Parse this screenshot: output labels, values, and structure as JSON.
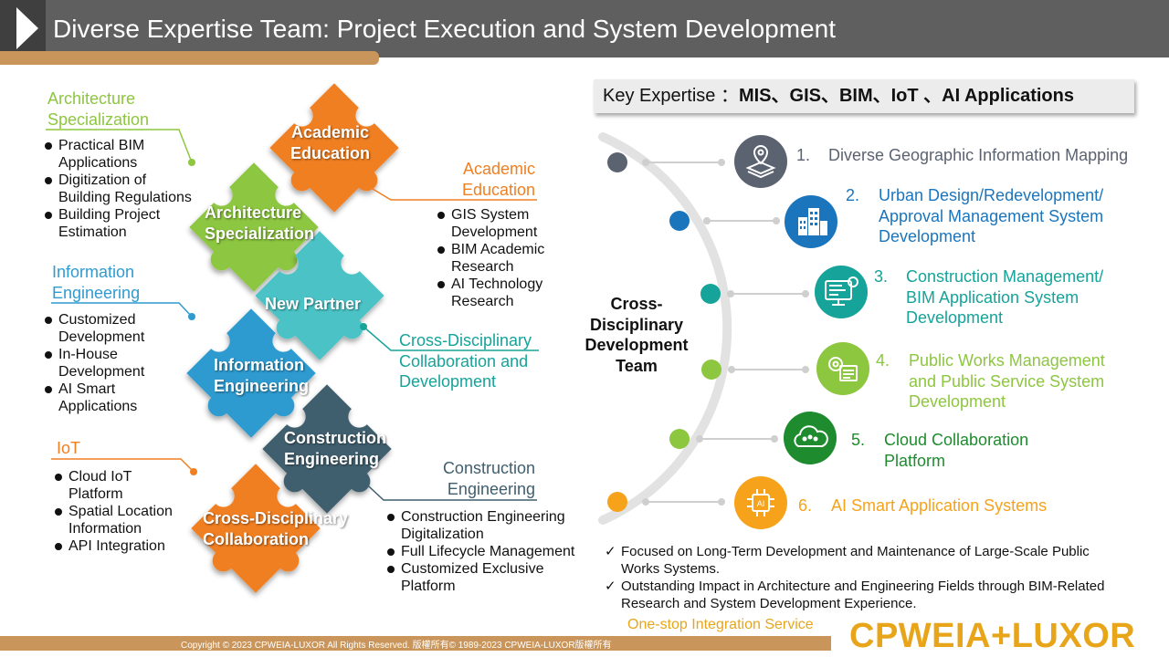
{
  "header": {
    "title": "Diverse Expertise Team: Project Execution and System Development"
  },
  "puzzle": {
    "academic": "Academic\nEducation",
    "architecture": "Architecture\nSpecialization",
    "new_partner": "New Partner",
    "information": "Information\nEngineering",
    "construction": "Construction\nEngineering",
    "cross": "Cross-Disciplinary\nCollaboration"
  },
  "left_groups": [
    {
      "title": "Architecture\nSpecialization",
      "items": [
        "Practical BIM\nApplications",
        "Digitization of\nBuilding Regulations",
        "Building Project\nEstimation"
      ]
    },
    {
      "title": "Information\nEngineering",
      "items": [
        "Customized\nDevelopment",
        "In-House\nDevelopment",
        "AI Smart\nApplications"
      ]
    },
    {
      "title": "IoT",
      "items": [
        "Cloud IoT\nPlatform",
        "Spatial Location\nInformation",
        "API Integration"
      ]
    }
  ],
  "right_groups": [
    {
      "title": "Academic\nEducation",
      "items": [
        "GIS System\nDevelopment",
        "BIM Academic\nResearch",
        "AI Technology\nResearch"
      ]
    },
    {
      "title": "Cross-Disciplinary\nCollaboration and\nDevelopment",
      "items": []
    },
    {
      "title": "Construction\nEngineering",
      "items": [
        "Construction Engineering\nDigitalization",
        "Full Lifecycle Management",
        "Customized Exclusive\nPlatform"
      ]
    }
  ],
  "key_expertise": {
    "label": "Key Expertise  ：",
    "value": "MIS、GIS、BIM、IoT 、AI  Applications"
  },
  "center_team": "Cross-\nDisciplinary\nDevelopment\nTeam",
  "expertise": [
    {
      "number": "1.",
      "text": "Diverse Geographic Information Mapping",
      "color": "#5b6270",
      "icon": "map-layers-icon"
    },
    {
      "number": "2.",
      "text": "Urban Design/Redevelopment/\nApproval Management System\nDevelopment",
      "color": "#1b75bc",
      "icon": "buildings-icon"
    },
    {
      "number": "3.",
      "text": "Construction Management/\nBIM Application System\nDevelopment",
      "color": "#16a39a",
      "icon": "monitor-gear-icon"
    },
    {
      "number": "4.",
      "text": "Public Works Management\nand Public Service System\nDevelopment",
      "color": "#8dc63f",
      "icon": "gears-document-icon"
    },
    {
      "number": "5.",
      "text": "Cloud Collaboration\nPlatform",
      "color": "#1e8c2e",
      "icon": "cloud-people-icon"
    },
    {
      "number": "6.",
      "text": "AI Smart Application Systems",
      "color": "#f7a21b",
      "icon": "ai-chip-icon"
    }
  ],
  "checklist": [
    "Focused on Long-Term Development and Maintenance of Large-Scale Public\nWorks Systems.",
    "Outstanding Impact in Architecture and Engineering Fields through BIM-Related\nResearch and System Development Experience."
  ],
  "check_mark": "✓",
  "footer": {
    "copyright": "Copyright © 2023 CPWEIA-LUXOR All Rights Reserved. 版權所有© 1989-2023 CPWEIA-LUXOR版權所有",
    "slogan": "One-stop Integration Service",
    "logo": "CPWEIA+LUXOR"
  },
  "colors": {
    "header": "#5f5f5f",
    "accent": "#c9955a",
    "architecture": "#8dc63f",
    "information": "#2f9bd0",
    "academic": "#f07f22",
    "cross": "#16a39a",
    "construction": "#3f5e6e",
    "iot": "#f07f22",
    "logo": "#e8a51a"
  }
}
